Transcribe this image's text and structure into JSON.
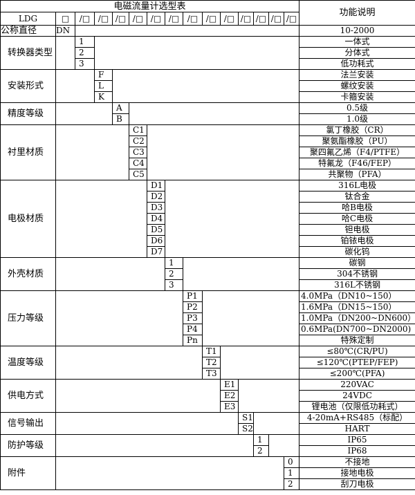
{
  "title": "电磁流量计选型表",
  "function_header": "功能说明",
  "model_row": {
    "prefix": "LDG",
    "first_slot": "□",
    "slots": [
      "/□",
      "/□",
      "/□",
      "/□",
      "/□",
      "/□",
      "/□",
      "/□",
      "/□",
      "/□",
      "/□",
      "/□",
      "/□"
    ]
  },
  "nominal": {
    "label": "公称直径",
    "code": "DN",
    "desc": "10-2000"
  },
  "sections": [
    {
      "label": "转换器类型",
      "col": 0,
      "codes": [
        "1",
        "2",
        "3"
      ],
      "descs": [
        "一体式",
        "分体式",
        "低功耗式"
      ]
    },
    {
      "label": "安装形式",
      "col": 1,
      "codes": [
        "F",
        "L",
        "K"
      ],
      "descs": [
        "法兰安装",
        "螺纹安装",
        "卡箍安装"
      ]
    },
    {
      "label": "精度等级",
      "col": 2,
      "codes": [
        "A",
        "B"
      ],
      "descs": [
        "0.5级",
        "1.0级"
      ]
    },
    {
      "label": "衬里材质",
      "col": 3,
      "codes": [
        "C1",
        "C2",
        "C3",
        "C4",
        "C5"
      ],
      "descs": [
        "氯丁橡胶（CR）",
        "聚氨酯橡胶（PU）",
        "聚四氟乙烯（F4/PTFE）",
        "特氟龙（F46/FEP）",
        "共聚物（PFA）"
      ]
    },
    {
      "label": "电极材质",
      "col": 4,
      "codes": [
        "D1",
        "D2",
        "D3",
        "D4",
        "D5",
        "D6",
        "D7"
      ],
      "descs": [
        "316L电极",
        "钛合金",
        "哈B电极",
        "哈C电极",
        "钽电极",
        "铂铱电极",
        "碳化钨"
      ]
    },
    {
      "label": "外壳材质",
      "col": 5,
      "codes": [
        "1",
        "2",
        "3"
      ],
      "descs": [
        "碳钢",
        "304不锈钢",
        "316L不锈钢"
      ]
    },
    {
      "label": "压力等级",
      "col": 6,
      "codes": [
        "P1",
        "P2",
        "P3",
        "P4",
        "Pn"
      ],
      "descs": [
        "4.0MPa（DN10~150）",
        "1.6MPa（DN15~150）",
        "1.0MPa（DN200~DN600）",
        "0.6MPa(DN700~DN2000)",
        "特殊定制"
      ],
      "left": [
        true,
        true,
        true,
        true,
        false
      ]
    },
    {
      "label": "温度等级",
      "col": 7,
      "codes": [
        "T1",
        "T2",
        "T3"
      ],
      "descs": [
        "≤80℃(CR/PU)",
        "≤120℃(PTEP/FEP)",
        "≤200℃(PFA)"
      ]
    },
    {
      "label": "供电方式",
      "col": 8,
      "codes": [
        "E1",
        "E2",
        "E3"
      ],
      "descs": [
        "220VAC",
        "24VDC",
        "锂电池（仅限低功耗式）"
      ]
    },
    {
      "label": "信号输出",
      "col": 9,
      "codes": [
        "S1",
        "S2"
      ],
      "descs": [
        "4-20mA+RS485（标配）",
        "HART"
      ]
    },
    {
      "label": "防护等级",
      "col": 10,
      "codes": [
        "1",
        "2"
      ],
      "descs": [
        "IP65",
        "IP68"
      ]
    },
    {
      "label": "附件",
      "col": 12,
      "codes": [
        "0",
        "1",
        "2"
      ],
      "descs": [
        "不接地",
        "接地电极",
        "刮刀电极"
      ]
    }
  ]
}
